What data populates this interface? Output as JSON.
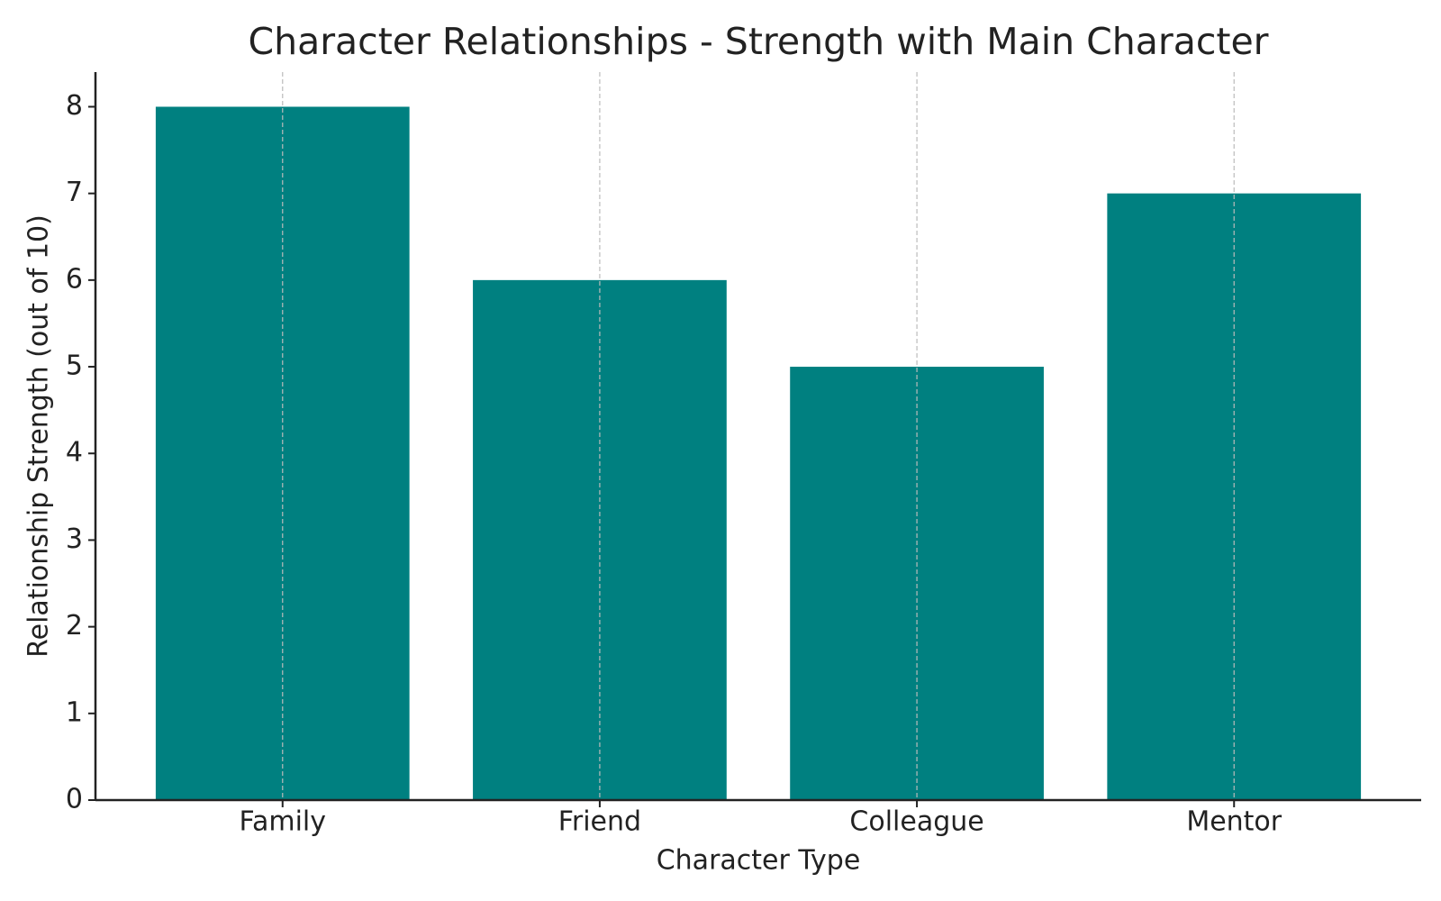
{
  "chart_data": {
    "type": "bar",
    "title": "Character Relationships - Strength with Main Character",
    "x_label": "Character Type",
    "y_label": "Relationship Strength (out of 10)",
    "categories": [
      "Family",
      "Friend",
      "Colleague",
      "Mentor"
    ],
    "values": [
      8,
      6,
      5,
      7
    ],
    "color": "#008080",
    "ylim": [
      0,
      8.4
    ],
    "yticks": [
      0,
      1,
      2,
      3,
      4,
      5,
      6,
      7,
      8
    ],
    "grid": "x"
  }
}
